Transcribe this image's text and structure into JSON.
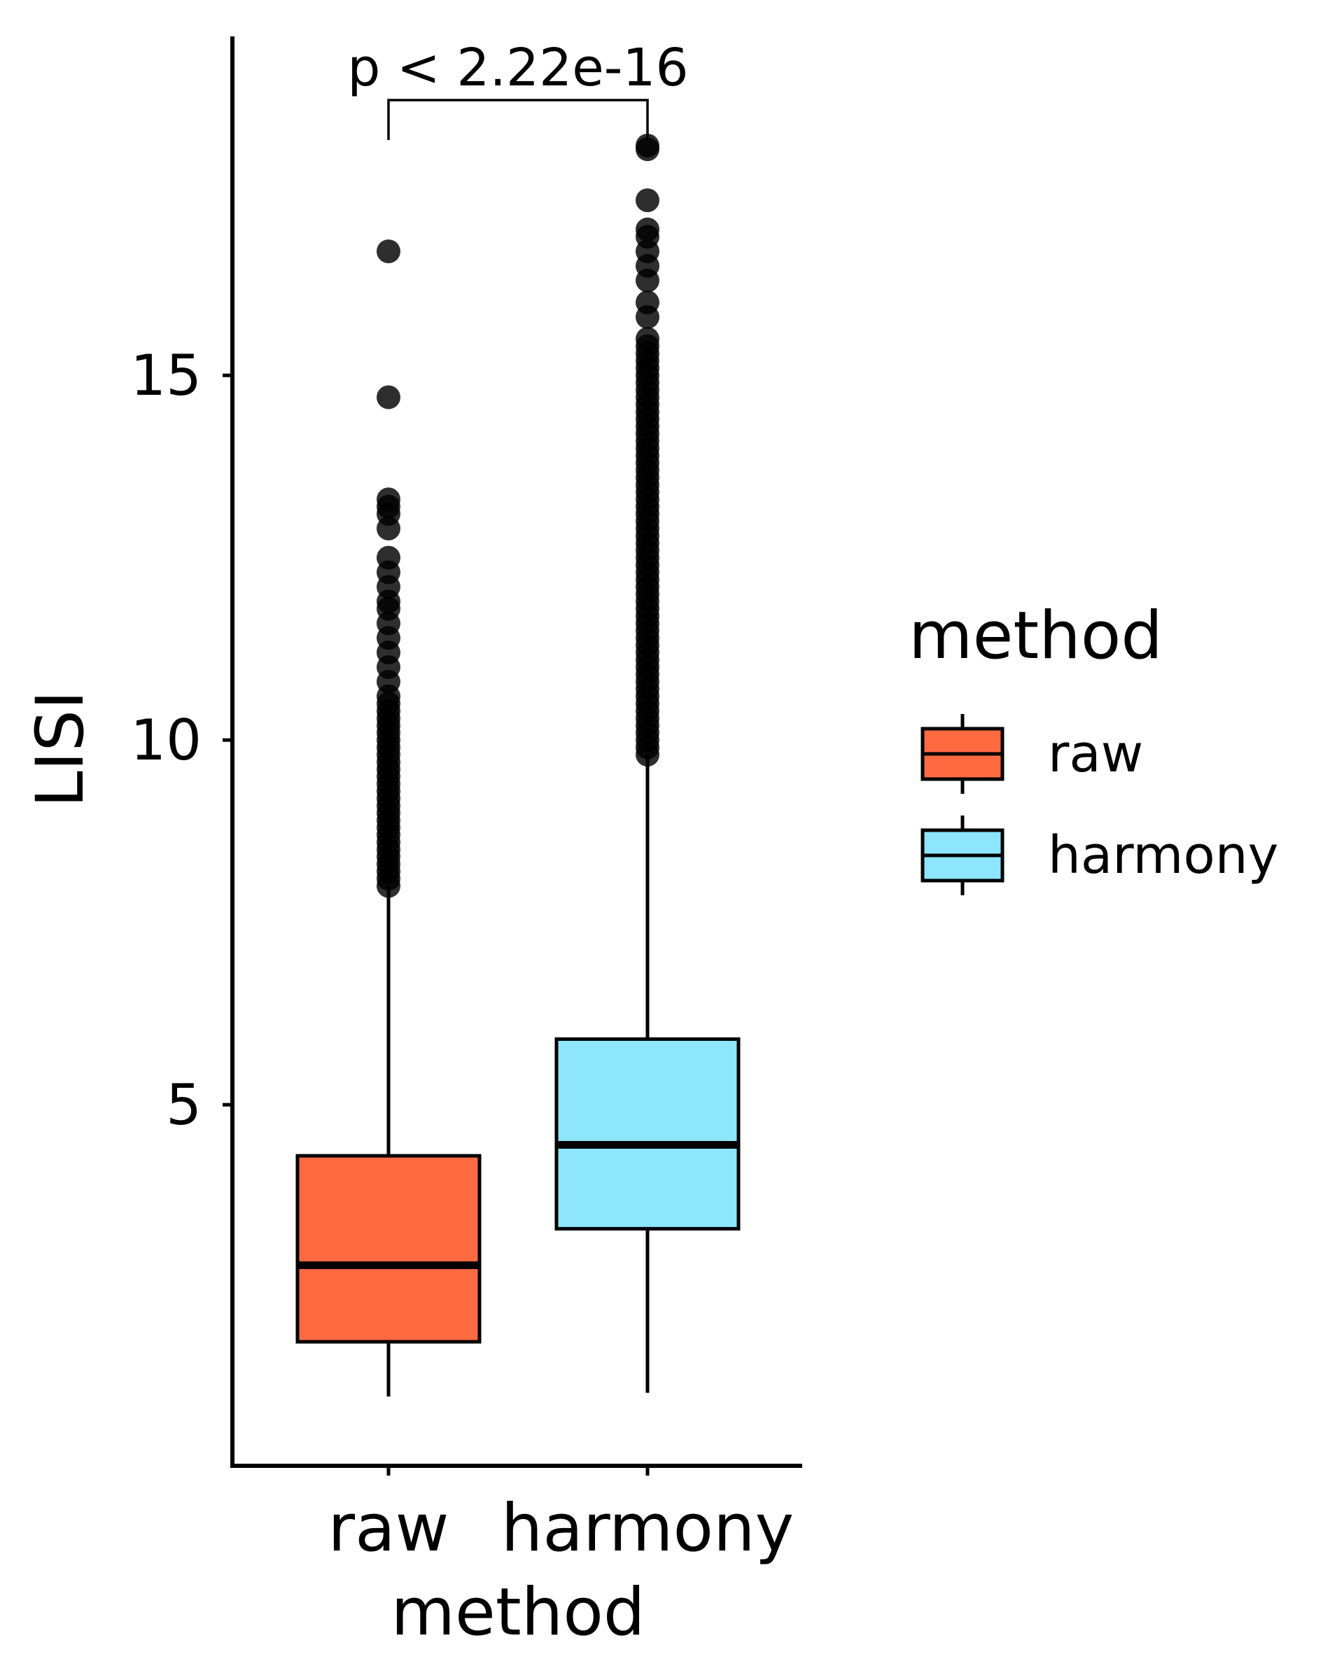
{
  "chart_data": {
    "type": "boxplot",
    "xlabel": "method",
    "ylabel": "LISI",
    "yticks": [
      5,
      10,
      15
    ],
    "ylim": [
      0.05,
      19.65
    ],
    "grid": false,
    "legend": {
      "title": "method",
      "position": "right",
      "entries": [
        {
          "label": "raw",
          "color": "#FF6A40"
        },
        {
          "label": "harmony",
          "color": "#8EE6FE"
        }
      ]
    },
    "categories": [
      "raw",
      "harmony"
    ],
    "series": [
      {
        "name": "raw",
        "color": "#FF6A40",
        "whisker_low": 1.0,
        "q1": 1.75,
        "median": 2.8,
        "q3": 4.3,
        "whisker_high": 8.0,
        "outliers": [
          8.0,
          8.1,
          8.2,
          8.3,
          8.4,
          8.5,
          8.6,
          8.7,
          8.8,
          8.9,
          9.0,
          9.1,
          9.2,
          9.3,
          9.4,
          9.5,
          9.6,
          9.7,
          9.8,
          9.9,
          10.0,
          10.1,
          10.2,
          10.3,
          10.4,
          10.5,
          10.6,
          10.8,
          11.0,
          11.2,
          11.4,
          11.6,
          11.8,
          11.9,
          12.1,
          12.3,
          12.5,
          12.9,
          13.1,
          13.2,
          13.3,
          14.7,
          16.7
        ]
      },
      {
        "name": "harmony",
        "color": "#8EE6FE",
        "whisker_low": 1.05,
        "q1": 3.3,
        "median": 4.45,
        "q3": 5.9,
        "whisker_high": 9.8,
        "outliers": [
          9.8,
          9.9,
          10.0,
          10.1,
          10.2,
          10.3,
          10.4,
          10.5,
          10.6,
          10.7,
          10.8,
          10.9,
          11.0,
          11.1,
          11.2,
          11.3,
          11.4,
          11.5,
          11.6,
          11.7,
          11.8,
          11.9,
          12.0,
          12.1,
          12.2,
          12.3,
          12.4,
          12.5,
          12.6,
          12.7,
          12.8,
          12.9,
          13.0,
          13.1,
          13.2,
          13.3,
          13.4,
          13.5,
          13.6,
          13.7,
          13.8,
          13.9,
          14.0,
          14.1,
          14.2,
          14.3,
          14.4,
          14.5,
          14.6,
          14.7,
          14.8,
          14.9,
          15.0,
          15.1,
          15.2,
          15.3,
          15.4,
          15.5,
          15.8,
          16.0,
          16.3,
          16.5,
          16.7,
          16.9,
          17.0,
          17.4,
          18.1,
          18.15
        ]
      }
    ],
    "annotations": [
      {
        "text": "p < 2.22e-16",
        "between": [
          "raw",
          "harmony"
        ]
      }
    ]
  }
}
